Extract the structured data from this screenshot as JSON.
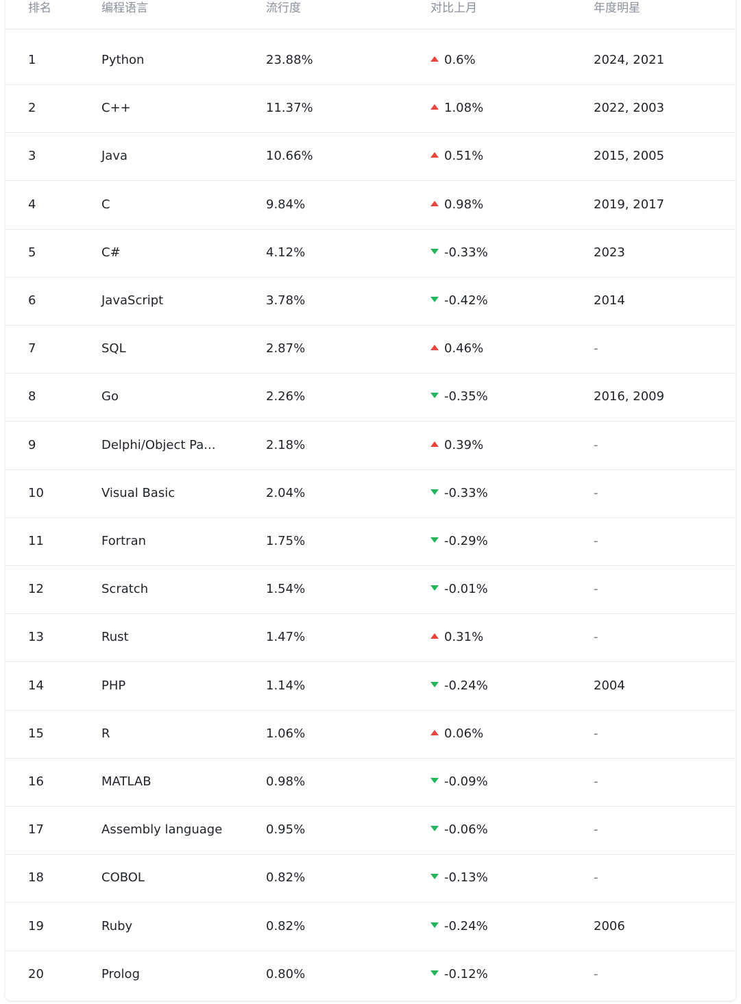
{
  "table": {
    "headers": {
      "rank": "排名",
      "language": "编程语言",
      "popularity": "流行度",
      "change": "对比上月",
      "star": "年度明星"
    },
    "rows": [
      {
        "rank": "1",
        "language": "Python",
        "popularity": "23.88%",
        "change": "0.6%",
        "direction": "up",
        "star": "2024, 2021"
      },
      {
        "rank": "2",
        "language": "C++",
        "popularity": "11.37%",
        "change": "1.08%",
        "direction": "up",
        "star": "2022, 2003"
      },
      {
        "rank": "3",
        "language": "Java",
        "popularity": "10.66%",
        "change": "0.51%",
        "direction": "up",
        "star": "2015, 2005"
      },
      {
        "rank": "4",
        "language": "C",
        "popularity": "9.84%",
        "change": "0.98%",
        "direction": "up",
        "star": "2019, 2017"
      },
      {
        "rank": "5",
        "language": "C#",
        "popularity": "4.12%",
        "change": "-0.33%",
        "direction": "down",
        "star": "2023"
      },
      {
        "rank": "6",
        "language": "JavaScript",
        "popularity": "3.78%",
        "change": "-0.42%",
        "direction": "down",
        "star": "2014"
      },
      {
        "rank": "7",
        "language": "SQL",
        "popularity": "2.87%",
        "change": "0.46%",
        "direction": "up",
        "star": "-"
      },
      {
        "rank": "8",
        "language": "Go",
        "popularity": "2.26%",
        "change": "-0.35%",
        "direction": "down",
        "star": "2016, 2009"
      },
      {
        "rank": "9",
        "language": "Delphi/Object Pa...",
        "popularity": "2.18%",
        "change": "0.39%",
        "direction": "up",
        "star": "-"
      },
      {
        "rank": "10",
        "language": "Visual Basic",
        "popularity": "2.04%",
        "change": "-0.33%",
        "direction": "down",
        "star": "-"
      },
      {
        "rank": "11",
        "language": "Fortran",
        "popularity": "1.75%",
        "change": "-0.29%",
        "direction": "down",
        "star": "-"
      },
      {
        "rank": "12",
        "language": "Scratch",
        "popularity": "1.54%",
        "change": "-0.01%",
        "direction": "down",
        "star": "-"
      },
      {
        "rank": "13",
        "language": "Rust",
        "popularity": "1.47%",
        "change": "0.31%",
        "direction": "up",
        "star": "-"
      },
      {
        "rank": "14",
        "language": "PHP",
        "popularity": "1.14%",
        "change": "-0.24%",
        "direction": "down",
        "star": "2004"
      },
      {
        "rank": "15",
        "language": "R",
        "popularity": "1.06%",
        "change": "0.06%",
        "direction": "up",
        "star": "-"
      },
      {
        "rank": "16",
        "language": "MATLAB",
        "popularity": "0.98%",
        "change": "-0.09%",
        "direction": "down",
        "star": "-"
      },
      {
        "rank": "17",
        "language": "Assembly language",
        "popularity": "0.95%",
        "change": "-0.06%",
        "direction": "down",
        "star": "-"
      },
      {
        "rank": "18",
        "language": "COBOL",
        "popularity": "0.82%",
        "change": "-0.13%",
        "direction": "down",
        "star": "-"
      },
      {
        "rank": "19",
        "language": "Ruby",
        "popularity": "0.82%",
        "change": "-0.24%",
        "direction": "down",
        "star": "2006"
      },
      {
        "rank": "20",
        "language": "Prolog",
        "popularity": "0.80%",
        "change": "-0.12%",
        "direction": "down",
        "star": "-"
      }
    ]
  },
  "colors": {
    "up": "#e8453c",
    "down": "#22b55b",
    "header_text": "#8a8f99"
  }
}
